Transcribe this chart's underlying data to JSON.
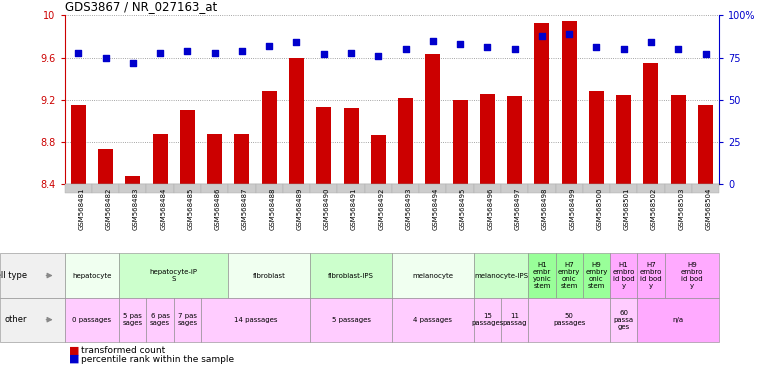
{
  "title": "GDS3867 / NR_027163_at",
  "samples": [
    "GSM568481",
    "GSM568482",
    "GSM568483",
    "GSM568484",
    "GSM568485",
    "GSM568486",
    "GSM568487",
    "GSM568488",
    "GSM568489",
    "GSM568490",
    "GSM568491",
    "GSM568492",
    "GSM568493",
    "GSM568494",
    "GSM568495",
    "GSM568496",
    "GSM568497",
    "GSM568498",
    "GSM568499",
    "GSM568500",
    "GSM568501",
    "GSM568502",
    "GSM568503",
    "GSM568504"
  ],
  "bar_values": [
    9.15,
    8.73,
    8.48,
    8.88,
    9.1,
    8.88,
    8.88,
    9.28,
    9.6,
    9.13,
    9.12,
    8.87,
    9.22,
    9.63,
    9.2,
    9.26,
    9.24,
    9.93,
    9.95,
    9.28,
    9.25,
    9.55,
    9.25,
    9.15
  ],
  "percentile_values": [
    78,
    75,
    72,
    78,
    79,
    78,
    79,
    82,
    84,
    77,
    78,
    76,
    80,
    85,
    83,
    81,
    80,
    88,
    89,
    81,
    80,
    84,
    80,
    77
  ],
  "bar_color": "#cc0000",
  "percentile_color": "#0000cc",
  "bg_color": "#ffffff",
  "ylim_left": [
    8.4,
    10.0
  ],
  "ylim_right": [
    0,
    100
  ],
  "yticks_left": [
    8.4,
    8.8,
    9.2,
    9.6,
    10.0
  ],
  "yticks_right": [
    0,
    25,
    50,
    75,
    100
  ],
  "ytick_labels_left": [
    "8.4",
    "8.8",
    "9.2",
    "9.6",
    "10"
  ],
  "ytick_labels_right": [
    "0",
    "25",
    "50",
    "75",
    "100%"
  ],
  "grid_values": [
    8.8,
    9.2,
    9.6,
    10.0
  ],
  "cell_type_groups": [
    {
      "label": "hepatocyte",
      "start": 0,
      "end": 2,
      "color": "#f0fff0"
    },
    {
      "label": "hepatocyte-iP\nS",
      "start": 2,
      "end": 6,
      "color": "#ccffcc"
    },
    {
      "label": "fibroblast",
      "start": 6,
      "end": 9,
      "color": "#f0fff0"
    },
    {
      "label": "fibroblast-IPS",
      "start": 9,
      "end": 12,
      "color": "#ccffcc"
    },
    {
      "label": "melanocyte",
      "start": 12,
      "end": 15,
      "color": "#f0fff0"
    },
    {
      "label": "melanocyte-IPS",
      "start": 15,
      "end": 17,
      "color": "#ccffcc"
    },
    {
      "label": "H1\nembr\nyonic\nstem",
      "start": 17,
      "end": 18,
      "color": "#99ff99"
    },
    {
      "label": "H7\nembry\nonic\nstem",
      "start": 18,
      "end": 19,
      "color": "#99ff99"
    },
    {
      "label": "H9\nembry\nonic\nstem",
      "start": 19,
      "end": 20,
      "color": "#99ff99"
    },
    {
      "label": "H1\nembro\nid bod\ny",
      "start": 20,
      "end": 21,
      "color": "#ffaaff"
    },
    {
      "label": "H7\nembro\nid bod\ny",
      "start": 21,
      "end": 22,
      "color": "#ffaaff"
    },
    {
      "label": "H9\nembro\nid bod\ny",
      "start": 22,
      "end": 24,
      "color": "#ffaaff"
    }
  ],
  "other_groups": [
    {
      "label": "0 passages",
      "start": 0,
      "end": 2,
      "color": "#ffccff"
    },
    {
      "label": "5 pas\nsages",
      "start": 2,
      "end": 3,
      "color": "#ffccff"
    },
    {
      "label": "6 pas\nsages",
      "start": 3,
      "end": 4,
      "color": "#ffccff"
    },
    {
      "label": "7 pas\nsages",
      "start": 4,
      "end": 5,
      "color": "#ffccff"
    },
    {
      "label": "14 passages",
      "start": 5,
      "end": 9,
      "color": "#ffccff"
    },
    {
      "label": "5 passages",
      "start": 9,
      "end": 12,
      "color": "#ffccff"
    },
    {
      "label": "4 passages",
      "start": 12,
      "end": 15,
      "color": "#ffccff"
    },
    {
      "label": "15\npassages",
      "start": 15,
      "end": 16,
      "color": "#ffccff"
    },
    {
      "label": "11\npassag",
      "start": 16,
      "end": 17,
      "color": "#ffccff"
    },
    {
      "label": "50\npassages",
      "start": 17,
      "end": 20,
      "color": "#ffccff"
    },
    {
      "label": "60\npassa\nges",
      "start": 20,
      "end": 21,
      "color": "#ffccff"
    },
    {
      "label": "n/a",
      "start": 21,
      "end": 24,
      "color": "#ffaaff"
    }
  ],
  "row_labels": [
    "cell type",
    "other"
  ],
  "row_label_color": "#e8e8e8",
  "col_header_color": "#d8d8d8"
}
